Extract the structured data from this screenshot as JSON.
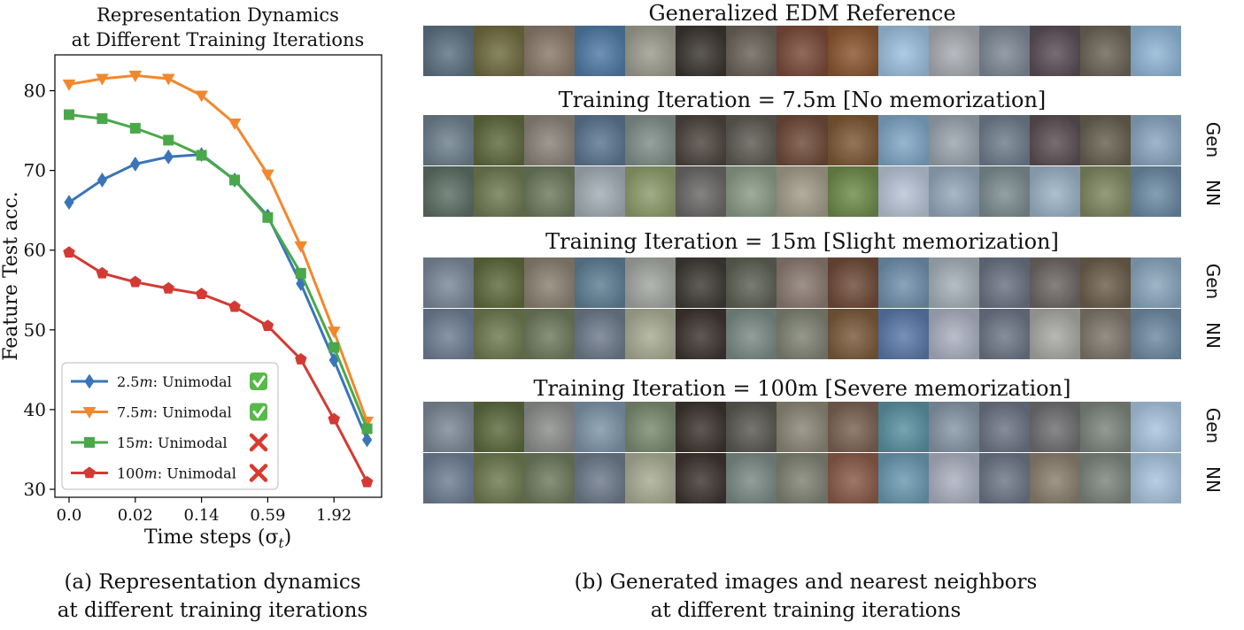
{
  "chart_data": {
    "type": "line",
    "title": [
      "Representation Dynamics",
      "at Different Training Iterations"
    ],
    "xlabel": "Time steps (σ",
    "xlabel_sub": "t",
    "xlabel_end": ")",
    "ylabel": "Feature Test acc.",
    "x_ticklabels": [
      "0.0",
      "0.02",
      "0.14",
      "0.59",
      "1.92"
    ],
    "y_ticks": [
      30,
      40,
      50,
      60,
      70,
      80
    ],
    "ylim": [
      29,
      84.5
    ],
    "x": [
      0,
      1,
      2,
      3,
      4,
      5,
      6,
      7,
      8,
      9
    ],
    "grid": false,
    "legend_position": "lower-left",
    "series": [
      {
        "name": "2.5m",
        "label_prefix": "2.5",
        "label_unit": "m",
        "label_suffix": ":  Unimodal",
        "status": "check",
        "color": "#3a75b8",
        "marker": "diamond",
        "values": [
          66.0,
          68.8,
          70.8,
          71.7,
          72.0,
          68.8,
          64.3,
          55.8,
          46.2,
          36.2
        ]
      },
      {
        "name": "7.5m",
        "label_prefix": "7.5",
        "label_unit": "m",
        "label_suffix": ":  Unimodal",
        "status": "check",
        "color": "#f2882e",
        "marker": "triangle-down",
        "values": [
          80.8,
          81.5,
          81.9,
          81.5,
          79.4,
          75.9,
          69.5,
          60.5,
          49.8,
          38.5
        ]
      },
      {
        "name": "15m",
        "label_prefix": "15",
        "label_unit": "m",
        "label_suffix": ":    Unimodal",
        "status": "cross",
        "color": "#4aa84a",
        "marker": "square",
        "values": [
          77.0,
          76.5,
          75.3,
          73.8,
          71.9,
          68.8,
          64.1,
          57.1,
          47.8,
          37.6
        ]
      },
      {
        "name": "100m",
        "label_prefix": "100",
        "label_unit": "m",
        "label_suffix": ": Unimodal",
        "status": "cross",
        "color": "#d33a34",
        "marker": "pentagon",
        "values": [
          59.7,
          57.1,
          56.0,
          55.2,
          54.5,
          52.9,
          50.5,
          46.3,
          38.8,
          30.9
        ]
      }
    ]
  },
  "grid_panel": {
    "reference_title": "Generalized EDM Reference",
    "sections": [
      {
        "title": "Training Iteration = 7.5m [No memorization]",
        "labels": [
          "Gen",
          "NN"
        ]
      },
      {
        "title": "Training Iteration = 15m [Slight memorization]",
        "labels": [
          "Gen",
          "NN"
        ]
      },
      {
        "title": "Training Iteration = 100m [Severe memorization]",
        "labels": [
          "Gen",
          "NN"
        ]
      }
    ],
    "rows": {
      "ref": [
        "#5d7181",
        "#6f6b3f",
        "#8a7a6a",
        "#4f7aa4",
        "#9c9c8e",
        "#3a3530",
        "#6a6258",
        "#7a4a38",
        "#8a5630",
        "#9cc0de",
        "#a8acb2",
        "#7e8896",
        "#5a4d55",
        "#6b6456",
        "#8fb6d6"
      ],
      "g75": [
        "#6d7f8c",
        "#5f6a3e",
        "#8a8278",
        "#5a7590",
        "#7f8e88",
        "#4d453e",
        "#5d5a52",
        "#6e4a38",
        "#7c5834",
        "#7fa6c6",
        "#9aa4ae",
        "#6f7c8c",
        "#5b4e52",
        "#66604f",
        "#8aa6c0"
      ],
      "n75": [
        "#5c6e64",
        "#6e7a52",
        "#6c7a5c",
        "#a2adb5",
        "#8c9c6a",
        "#6a6866",
        "#8a9a86",
        "#a29c88",
        "#6e8a4a",
        "#b8c4d6",
        "#96a8ba",
        "#7c8c90",
        "#9ab2c6",
        "#7e8660",
        "#6a8aa2"
      ],
      "g15": [
        "#7a8898",
        "#5e6a3c",
        "#8a8070",
        "#5e7e94",
        "#a2a6a0",
        "#3e3a34",
        "#5d6054",
        "#8a7a70",
        "#6e4a38",
        "#7090ac",
        "#a6b0b8",
        "#6a7282",
        "#6c6664",
        "#6c5e4c",
        "#8aa6be"
      ],
      "n15": [
        "#6e7e94",
        "#6e7a50",
        "#6e7a5c",
        "#6d7a8a",
        "#a8ac92",
        "#3e3430",
        "#7a8a84",
        "#7e8272",
        "#7a5a3a",
        "#5a78a8",
        "#aab0c0",
        "#6c7686",
        "#a8a8a4",
        "#7e766a",
        "#6e8aa2"
      ],
      "g100": [
        "#7c8896",
        "#5c6a3e",
        "#8c8e8c",
        "#7c94a8",
        "#7a8a70",
        "#3c342e",
        "#5a5852",
        "#8a8676",
        "#7a6252",
        "#5a90a0",
        "#8696a6",
        "#6c7484",
        "#6e6e70",
        "#7c847c",
        "#a8c4de"
      ],
      "n100": [
        "#6e7e94",
        "#6e7a50",
        "#6e7a5c",
        "#6d7a8a",
        "#a8ac92",
        "#3e3430",
        "#7a8a84",
        "#7e8272",
        "#8a5a48",
        "#6a98b0",
        "#aab0c0",
        "#6c7686",
        "#8a7e6e",
        "#7c847c",
        "#a8c4de"
      ]
    }
  },
  "captions": {
    "a": [
      "(a) Representation dynamics",
      "at different training iterations"
    ],
    "b": [
      "(b) Generated images and nearest neighbors",
      "at different training iterations"
    ]
  }
}
